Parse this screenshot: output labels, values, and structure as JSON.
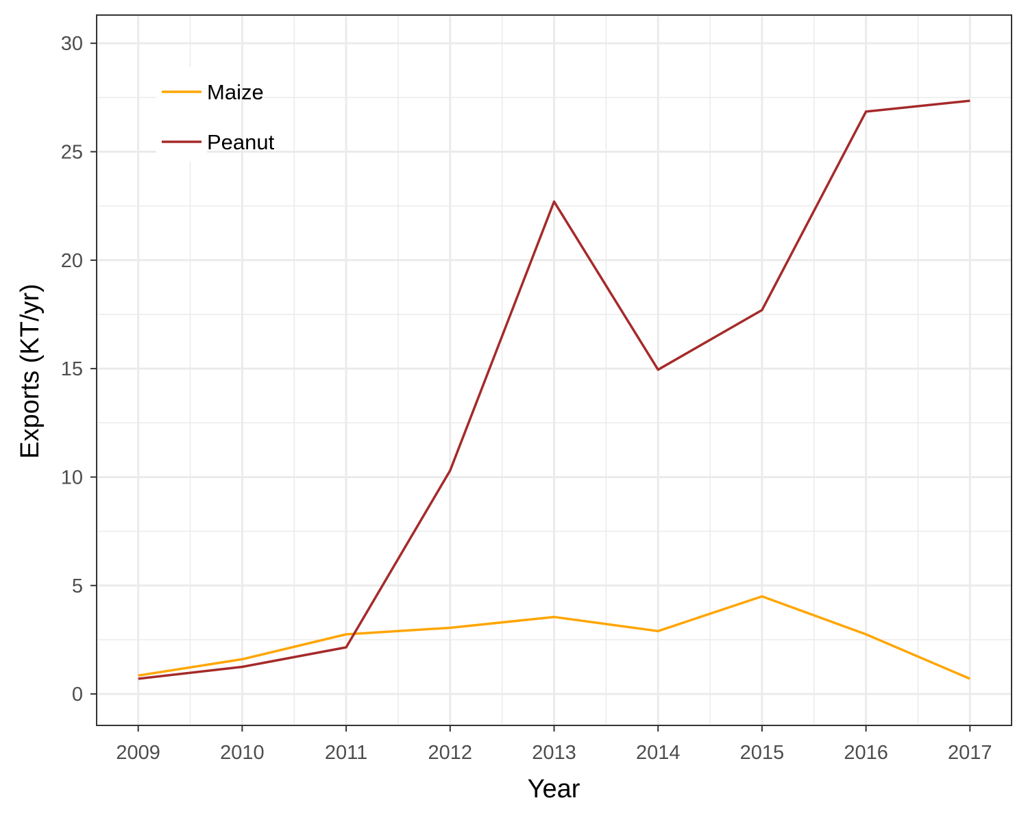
{
  "chart_data": {
    "type": "line",
    "title": "",
    "xlabel": "Year",
    "ylabel": "Exports (KT/yr)",
    "x": [
      2009,
      2010,
      2011,
      2012,
      2013,
      2014,
      2015,
      2016,
      2017
    ],
    "x_tick_labels": [
      "2009",
      "2010",
      "2011",
      "2012",
      "2013",
      "2014",
      "2015",
      "2016",
      "2017"
    ],
    "y_ticks": [
      0,
      5,
      10,
      15,
      20,
      25,
      30
    ],
    "y_tick_labels": [
      "0",
      "5",
      "10",
      "15",
      "20",
      "25",
      "30"
    ],
    "xlim": [
      2008.6,
      2017.4
    ],
    "ylim": [
      -1.45,
      31.3
    ],
    "grid": true,
    "legend_position": "top-left (inside plot)",
    "series": [
      {
        "name": "Maize",
        "color": "#FFA500",
        "values": [
          0.85,
          1.6,
          2.75,
          3.05,
          3.55,
          2.9,
          4.5,
          2.75,
          0.7
        ]
      },
      {
        "name": "Peanut",
        "color": "#A52A2A",
        "values": [
          0.7,
          1.25,
          2.15,
          10.3,
          22.7,
          14.95,
          17.7,
          26.85,
          27.35
        ]
      }
    ]
  }
}
